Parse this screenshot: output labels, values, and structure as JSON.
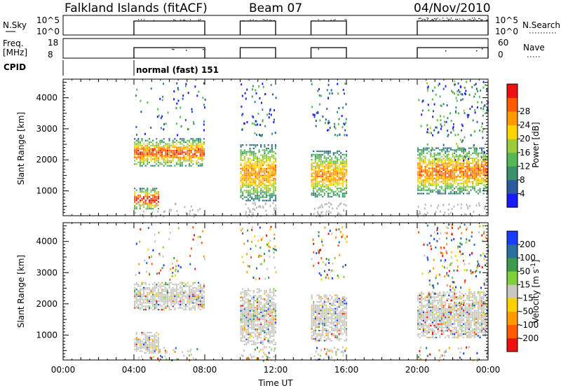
{
  "header": {
    "station": "Falkland Islands (fitACF)",
    "beam": "Beam 07",
    "date": "04/Nov/2010"
  },
  "status_panels": {
    "nsky": {
      "left_label": "N.Sky",
      "right_label": "N.Search",
      "left_ticks": [
        "10^5",
        "10^0"
      ],
      "right_ticks": [
        "10^5",
        "10^0"
      ]
    },
    "freq": {
      "left_label_top": "Freq.",
      "left_label_bottom": "[MHz]",
      "right_label": "Nave",
      "left_ticks": [
        "18",
        "8"
      ],
      "right_ticks": [
        "60",
        "0"
      ]
    },
    "cpid": {
      "label": "CPID",
      "mode_text": "normal (fast) 151"
    }
  },
  "chart_data": [
    {
      "type": "heatmap",
      "title": "",
      "xlabel": "",
      "ylabel": "Slant Range [km]",
      "x_ticks": [
        "00:00",
        "04:00",
        "08:00",
        "12:00",
        "16:00",
        "20:00",
        "00:00"
      ],
      "y_ticks": [
        "1000",
        "2000",
        "3000",
        "4000"
      ],
      "xlim_hours": [
        0,
        24
      ],
      "ylim_km": [
        200,
        4600
      ],
      "colorbar_label": "Power [dB]",
      "colorbar_ticks": [
        "4",
        "8",
        "12",
        "16",
        "20",
        "24",
        "28"
      ],
      "colorbar_colors": [
        "#1a1aff",
        "#2d5aa0",
        "#3b8f6a",
        "#55b855",
        "#9ccc3a",
        "#ffd400",
        "#ff9a00",
        "#ff5a00",
        "#ee1111"
      ],
      "observation_windows_hours": [
        [
          4,
          8
        ],
        [
          10,
          12
        ],
        [
          14,
          16
        ],
        [
          20,
          24
        ]
      ],
      "echo_regions": [
        {
          "start_hr": 4,
          "end_hr": 8,
          "range_km": [
            1800,
            2700
          ],
          "peak_power_db": 26
        },
        {
          "start_hr": 4,
          "end_hr": 5.4,
          "range_km": [
            400,
            1100
          ],
          "peak_power_db": 28
        },
        {
          "start_hr": 10,
          "end_hr": 12,
          "range_km": [
            700,
            2500
          ],
          "peak_power_db": 22
        },
        {
          "start_hr": 14,
          "end_hr": 16,
          "range_km": [
            800,
            2300
          ],
          "peak_power_db": 22
        },
        {
          "start_hr": 20,
          "end_hr": 24,
          "range_km": [
            900,
            2400
          ],
          "peak_power_db": 24
        }
      ]
    },
    {
      "type": "heatmap",
      "title": "",
      "xlabel": "Time UT",
      "ylabel": "Slant Range [km]",
      "x_ticks": [
        "00:00",
        "04:00",
        "08:00",
        "12:00",
        "16:00",
        "20:00",
        "00:00"
      ],
      "y_ticks": [
        "1000",
        "2000",
        "3000",
        "4000"
      ],
      "xlim_hours": [
        0,
        24
      ],
      "ylim_km": [
        200,
        4600
      ],
      "colorbar_label": "Velocity [m s^-1]",
      "colorbar_ticks": [
        "200",
        "100",
        "50",
        "15",
        "-15",
        "-50",
        "-100",
        "-200"
      ],
      "colorbar_colors": [
        "#1a3cff",
        "#2a6fa0",
        "#3c9a4a",
        "#7fd03a",
        "#c8c8c0",
        "#ffd000",
        "#ff9a00",
        "#ff5a00",
        "#ee1111"
      ],
      "dominant_velocity": "ground scatter (grey)"
    }
  ]
}
